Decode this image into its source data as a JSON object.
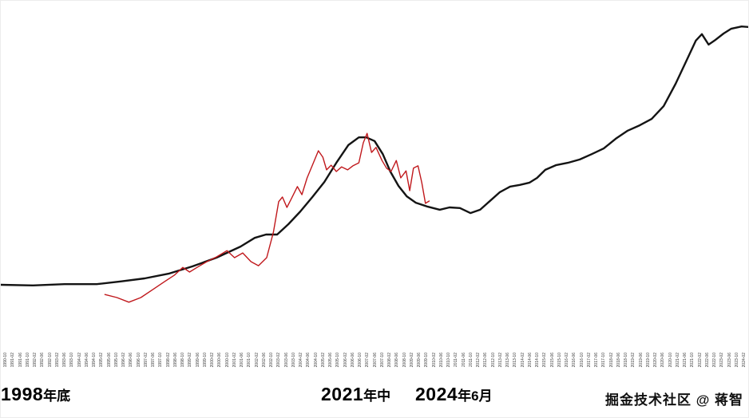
{
  "page": {
    "background": "#ffffff"
  },
  "chart_data": {
    "type": "line",
    "title": "",
    "xlabel": "",
    "ylabel": "",
    "grid": false,
    "legend": "none",
    "y_axis": {
      "visible": false,
      "range": [
        0,
        100
      ]
    },
    "x_axis": {
      "orientation": "vertical",
      "tick_labels": [
        "1990-10",
        "1991-02",
        "1991-06",
        "1991-10",
        "1992-02",
        "1992-06",
        "1992-10",
        "1993-02",
        "1993-06",
        "1993-10",
        "1994-02",
        "1994-06",
        "1994-10",
        "1995-02",
        "1995-06",
        "1995-10",
        "1996-02",
        "1996-06",
        "1996-10",
        "1997-02",
        "1997-06",
        "1997-10",
        "1998-02",
        "1998-06",
        "1998-10",
        "1999-02",
        "1999-06",
        "1999-10",
        "2000-02",
        "2000-06",
        "2000-10",
        "2001-02",
        "2001-06",
        "2001-10",
        "2002-02",
        "2002-06",
        "2002-10",
        "2003-02",
        "2003-06",
        "2003-10",
        "2004-02",
        "2004-06",
        "2004-10",
        "2005-02",
        "2005-06",
        "2005-10",
        "2006-02",
        "2006-06",
        "2006-10",
        "2007-02",
        "2007-06",
        "2007-10",
        "2008-02",
        "2008-06",
        "2008-10",
        "2009-02",
        "2009-06",
        "2009-10",
        "2010-02",
        "2010-06",
        "2010-10",
        "2011-02",
        "2011-06",
        "2011-10",
        "2012-02",
        "2012-06",
        "2012-10",
        "2013-02",
        "2013-06",
        "2013-10",
        "2014-02",
        "2014-06",
        "2014-10",
        "2015-02",
        "2015-06",
        "2015-10",
        "2016-02",
        "2016-06",
        "2016-10",
        "2017-02",
        "2017-06",
        "2017-10",
        "2018-02",
        "2018-06",
        "2018-10",
        "2019-02",
        "2019-06",
        "2019-10",
        "2020-02",
        "2020-06",
        "2020-10",
        "2021-02",
        "2021-06",
        "2021-10",
        "2022-02",
        "2022-06",
        "2022-10",
        "2023-02",
        "2023-06",
        "2023-10",
        "2024-02"
      ]
    },
    "series": [
      {
        "name": "black-smooth-line",
        "color": "#141414",
        "stroke_width": 2.4,
        "points": [
          [
            0,
            20
          ],
          [
            4.3,
            19.8
          ],
          [
            8.5,
            20.2
          ],
          [
            12.8,
            20.2
          ],
          [
            16,
            21
          ],
          [
            19.2,
            21.9
          ],
          [
            22.4,
            23.3
          ],
          [
            25.6,
            25.5
          ],
          [
            28.8,
            28.1
          ],
          [
            32,
            31.4
          ],
          [
            33.9,
            34
          ],
          [
            35.4,
            35
          ],
          [
            36.9,
            35
          ],
          [
            38.4,
            38.1
          ],
          [
            40,
            41.9
          ],
          [
            41.6,
            46.2
          ],
          [
            43.2,
            50.7
          ],
          [
            44.8,
            56.4
          ],
          [
            46.4,
            61.7
          ],
          [
            47.8,
            64
          ],
          [
            48.8,
            64
          ],
          [
            49.9,
            62.9
          ],
          [
            51,
            59
          ],
          [
            52,
            53.8
          ],
          [
            53.1,
            49.5
          ],
          [
            54.2,
            46.4
          ],
          [
            55.4,
            44.5
          ],
          [
            57,
            43.3
          ],
          [
            58.6,
            42.4
          ],
          [
            59.9,
            43.1
          ],
          [
            61.3,
            42.9
          ],
          [
            62.7,
            41.4
          ],
          [
            64,
            42.4
          ],
          [
            65.2,
            44.8
          ],
          [
            66.6,
            47.6
          ],
          [
            68,
            49.3
          ],
          [
            69.3,
            49.8
          ],
          [
            70.6,
            50.5
          ],
          [
            71.6,
            51.9
          ],
          [
            72.7,
            54.3
          ],
          [
            74.1,
            55.7
          ],
          [
            75.7,
            56.4
          ],
          [
            77.3,
            57.4
          ],
          [
            78.9,
            59
          ],
          [
            80.5,
            60.7
          ],
          [
            82.1,
            63.6
          ],
          [
            83.7,
            66
          ],
          [
            85.3,
            67.6
          ],
          [
            86.9,
            69.5
          ],
          [
            88.5,
            73.3
          ],
          [
            90.1,
            80
          ],
          [
            91.5,
            86.7
          ],
          [
            92.8,
            92.9
          ],
          [
            93.6,
            94.8
          ],
          [
            94.5,
            91.7
          ],
          [
            95.3,
            92.9
          ],
          [
            96.5,
            95
          ],
          [
            97.5,
            96.4
          ],
          [
            98.9,
            97.1
          ],
          [
            100,
            96.9
          ]
        ]
      },
      {
        "name": "red-volatile-line",
        "color": "#c0181c",
        "stroke_width": 1.4,
        "points": [
          [
            13.9,
            17.1
          ],
          [
            15.5,
            16.2
          ],
          [
            17.1,
            14.8
          ],
          [
            18.7,
            16.2
          ],
          [
            20.3,
            18.6
          ],
          [
            21.9,
            21
          ],
          [
            23.2,
            22.9
          ],
          [
            24.3,
            25.2
          ],
          [
            25.2,
            23.8
          ],
          [
            26.2,
            25.2
          ],
          [
            27.5,
            26.9
          ],
          [
            28.8,
            28.3
          ],
          [
            30.2,
            30.2
          ],
          [
            31.2,
            28.1
          ],
          [
            32.3,
            29.5
          ],
          [
            33.4,
            26.9
          ],
          [
            34.4,
            25.7
          ],
          [
            35.5,
            28.1
          ],
          [
            36.4,
            35.7
          ],
          [
            37.1,
            44.8
          ],
          [
            37.6,
            46.2
          ],
          [
            38.2,
            43.1
          ],
          [
            38.8,
            45.7
          ],
          [
            39.6,
            49.3
          ],
          [
            40.2,
            46.9
          ],
          [
            40.9,
            51.9
          ],
          [
            41.7,
            56.2
          ],
          [
            42.4,
            60
          ],
          [
            43,
            58.1
          ],
          [
            43.5,
            54.3
          ],
          [
            44.1,
            55.7
          ],
          [
            44.8,
            53.8
          ],
          [
            45.5,
            55.2
          ],
          [
            46.3,
            54.3
          ],
          [
            47,
            55.5
          ],
          [
            47.8,
            56.4
          ],
          [
            48.4,
            62.4
          ],
          [
            48.9,
            65.2
          ],
          [
            49.5,
            59.5
          ],
          [
            50.1,
            61
          ],
          [
            50.9,
            57.1
          ],
          [
            51.5,
            54.8
          ],
          [
            52.1,
            53.8
          ],
          [
            52.8,
            57.1
          ],
          [
            53.4,
            51.9
          ],
          [
            54.1,
            54
          ],
          [
            54.6,
            48.1
          ],
          [
            55.1,
            54.8
          ],
          [
            55.7,
            55.5
          ],
          [
            56.2,
            50.5
          ],
          [
            56.7,
            44.3
          ],
          [
            57.2,
            45
          ]
        ]
      }
    ],
    "annotations": [
      "1998年底",
      "2021年中",
      "2024年6月"
    ]
  },
  "footer": {
    "annotation_left": {
      "number": "1998",
      "suffix": "年底"
    },
    "annotation_mid": {
      "number": "2021",
      "suffix": "年中"
    },
    "annotation_right": {
      "number": "2024",
      "suffix": "年6月"
    },
    "watermark": "掘金技术社区 @ 蒋智"
  }
}
